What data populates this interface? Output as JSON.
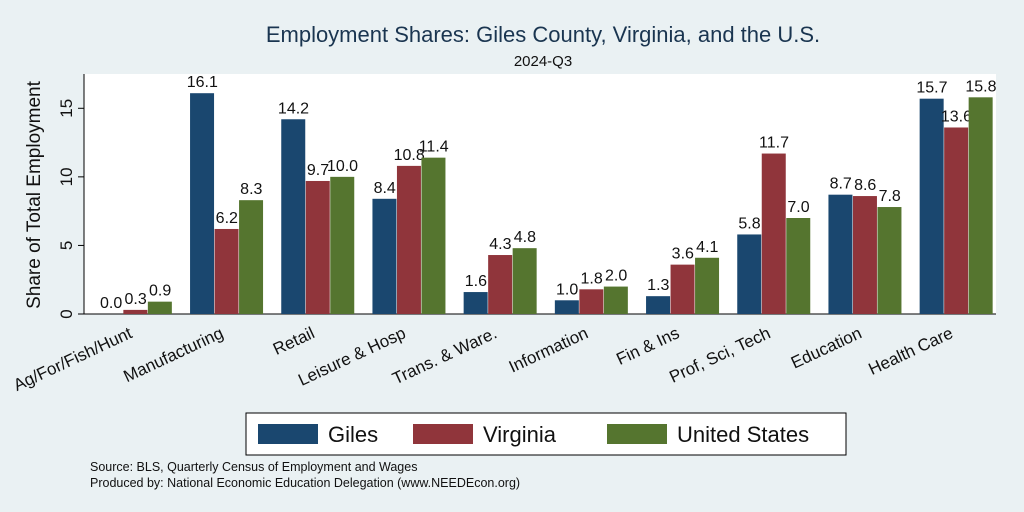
{
  "chart_data": {
    "type": "bar",
    "title": "Employment Shares: Giles County, Virginia, and the U.S.",
    "subtitle": "2024-Q3",
    "ylabel": "Share of Total Employment",
    "xlabel": "",
    "ylim": [
      0,
      17.5
    ],
    "yticks": [
      0,
      5,
      10,
      15
    ],
    "grid": false,
    "legend_position": "bottom",
    "categories": [
      "Ag/For/Fish/Hunt",
      "Manufacturing",
      "Retail",
      "Leisure & Hosp",
      "Trans. & Ware.",
      "Information",
      "Fin & Ins",
      "Prof, Sci, Tech",
      "Education",
      "Health Care"
    ],
    "series": [
      {
        "name": "Giles",
        "color": "#1a476f",
        "values": [
          0.0,
          16.1,
          14.2,
          8.4,
          1.6,
          1.0,
          1.3,
          5.8,
          8.7,
          15.7
        ]
      },
      {
        "name": "Virginia",
        "color": "#90353b",
        "values": [
          0.3,
          6.2,
          9.7,
          10.8,
          4.3,
          1.8,
          3.6,
          11.7,
          8.6,
          13.6
        ]
      },
      {
        "name": "United States",
        "color": "#55752f",
        "values": [
          0.9,
          8.3,
          10.0,
          11.4,
          4.8,
          2.0,
          4.1,
          7.0,
          7.8,
          15.8
        ]
      }
    ],
    "value_labels": [
      [
        "0.0",
        "16.1",
        "14.2",
        "8.4",
        "1.6",
        "1.0",
        "1.3",
        "5.8",
        "8.7",
        "15.7"
      ],
      [
        "0.3",
        "6.2",
        "9.7",
        "10.8",
        "4.3",
        "1.8",
        "3.6",
        "11.7",
        "8.6",
        "13.6"
      ],
      [
        "0.9",
        "8.3",
        "10.0",
        "11.4",
        "4.8",
        "2.0",
        "4.1",
        "7.0",
        "7.8",
        "15.8"
      ]
    ],
    "notes": [
      "Source: BLS, Quarterly Census of Employment and Wages",
      "Produced by: National Economic Education Delegation (www.NEEDEcon.org)"
    ]
  }
}
